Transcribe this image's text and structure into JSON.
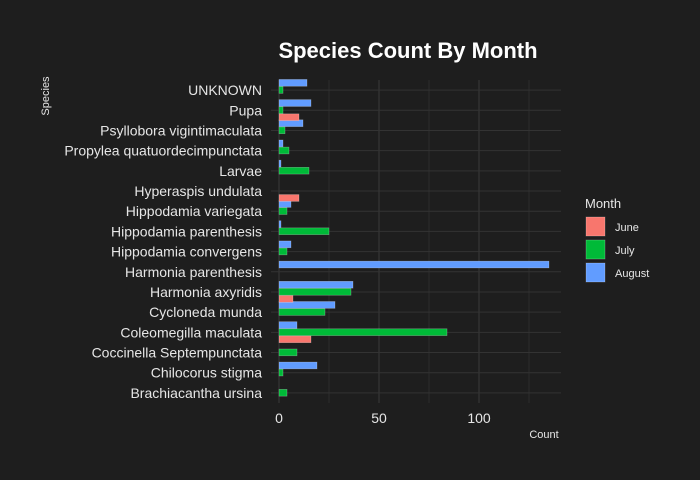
{
  "chart_data": {
    "type": "bar",
    "orientation": "horizontal",
    "title": "Species Count By Month",
    "xlabel": "Count",
    "ylabel": "Species",
    "xlim": [
      0,
      140
    ],
    "xticks": [
      0,
      50,
      100
    ],
    "grid": true,
    "legend": {
      "title": "Month",
      "placement": "right"
    },
    "categories": [
      "Brachiacantha ursina",
      "Chilocorus stigma",
      "Coccinella Septempunctata",
      "Coleomegilla maculata",
      "Cycloneda munda",
      "Harmonia axyridis",
      "Harmonia parenthesis",
      "Hippodamia convergens",
      "Hippodamia parenthesis",
      "Hippodamia variegata",
      "Hyperaspis undulata",
      "Larvae",
      "Propylea quatuordecimpunctata",
      "Psyllobora vigintimaculata",
      "Pupa",
      "UNKNOWN"
    ],
    "series": [
      {
        "name": "June",
        "color": "#f8766d",
        "values": [
          0,
          0,
          0,
          16,
          0,
          7,
          0,
          0,
          0,
          0,
          10,
          0,
          0,
          0,
          10,
          0
        ]
      },
      {
        "name": "July",
        "color": "#00ba38",
        "values": [
          4,
          2,
          9,
          84,
          23,
          36,
          0,
          4,
          25,
          4,
          0,
          15,
          5,
          3,
          2,
          2
        ]
      },
      {
        "name": "August",
        "color": "#619cff",
        "values": [
          0,
          19,
          0,
          9,
          28,
          37,
          135,
          6,
          1,
          6,
          0,
          1,
          2,
          12,
          16,
          14
        ]
      }
    ]
  }
}
